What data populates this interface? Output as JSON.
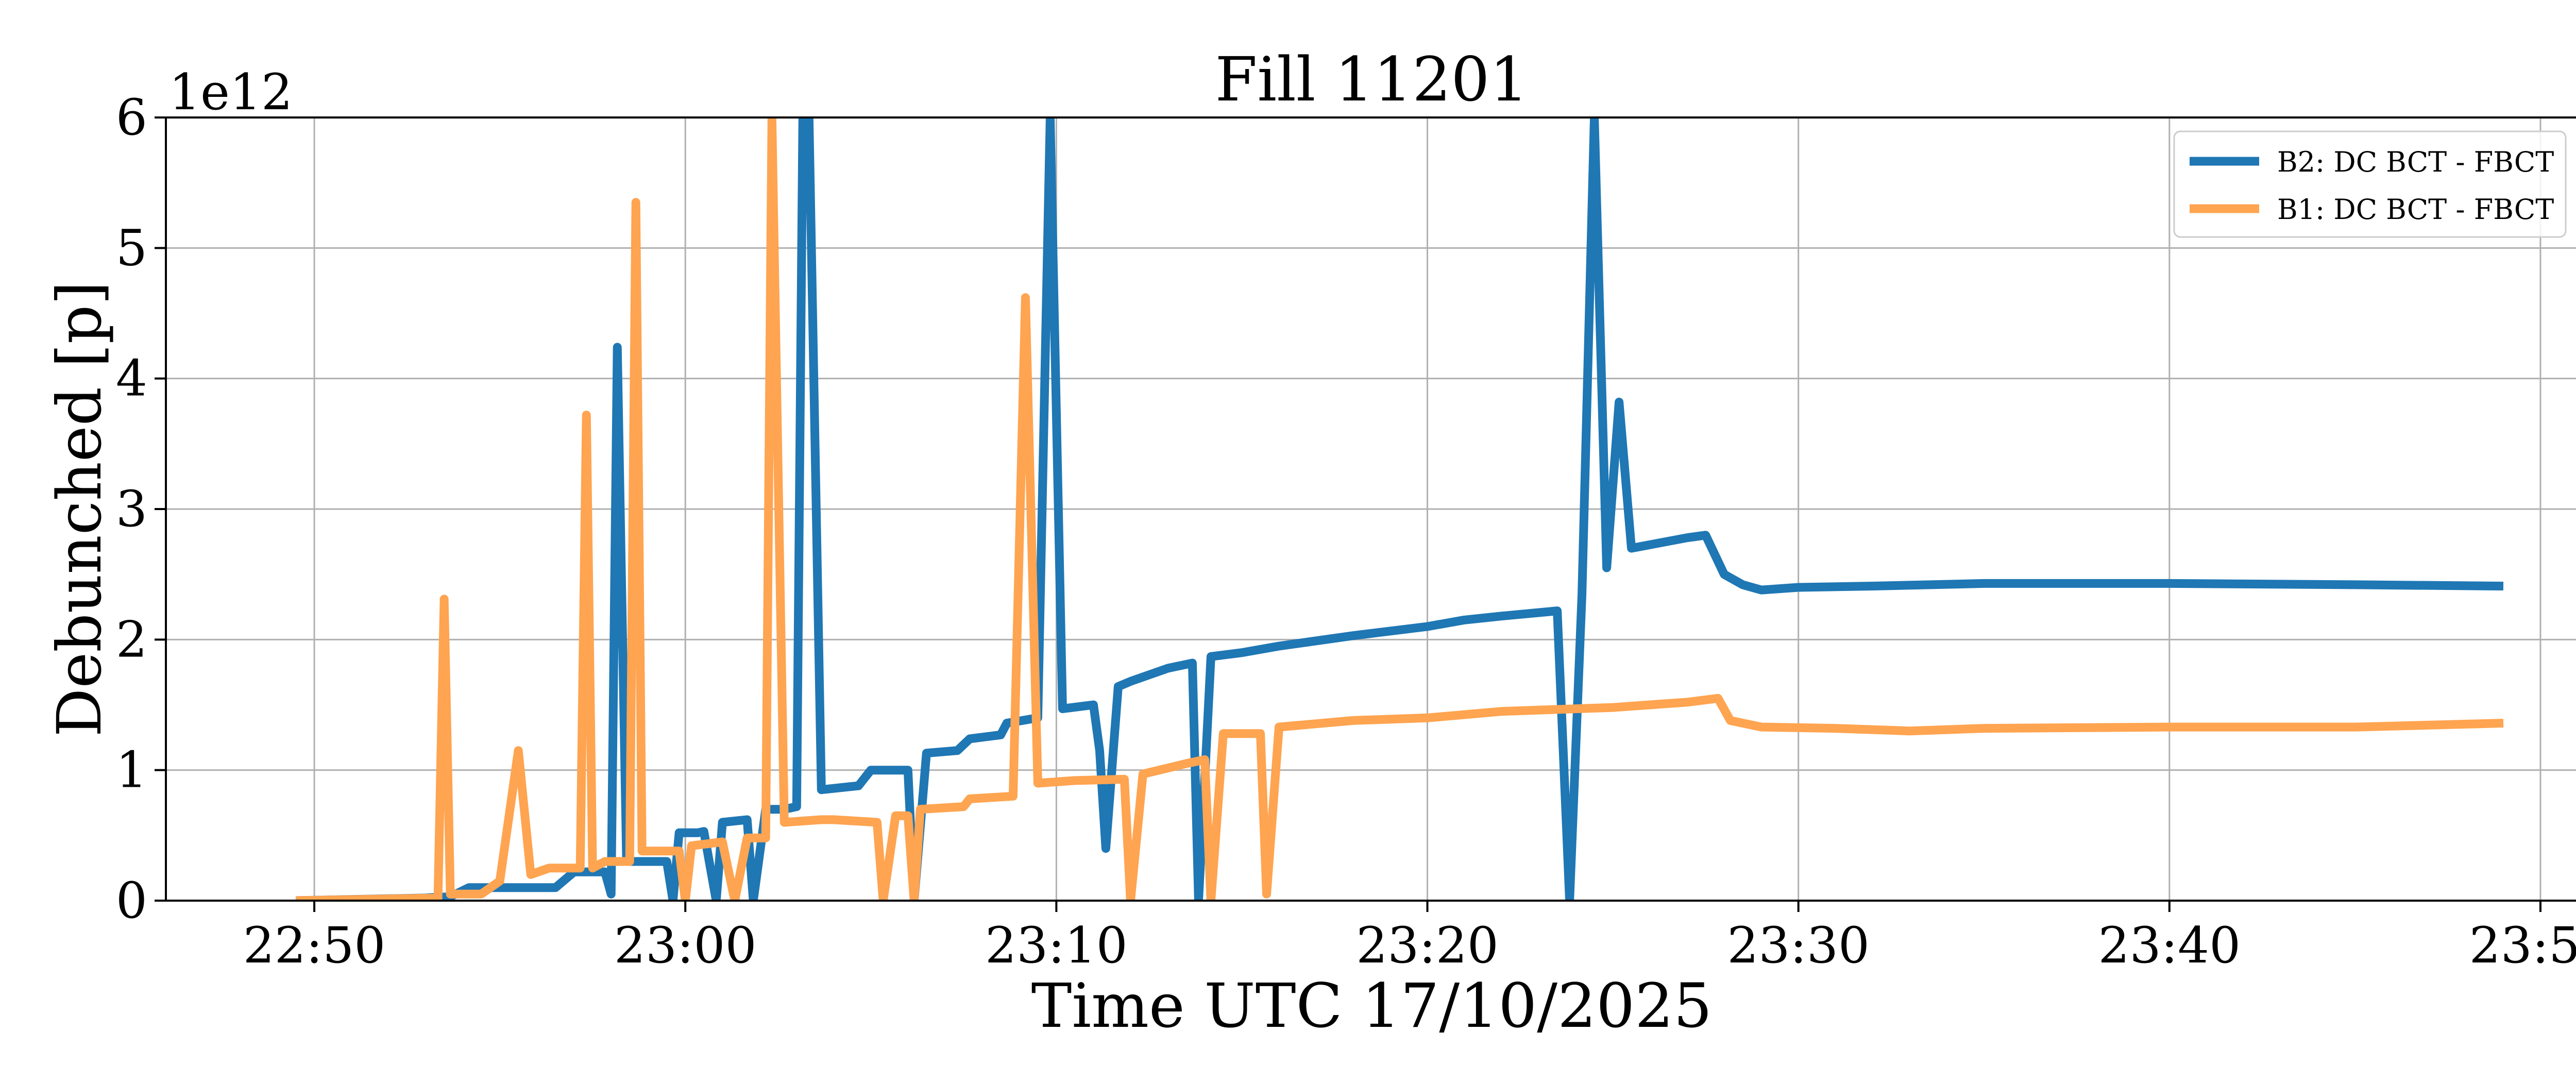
{
  "chart_data": {
    "type": "line",
    "title": "Fill 11201",
    "xlabel": "Time UTC 17/10/2025",
    "ylabel": "Debunched [p]",
    "y_offset_label": "1e12",
    "y_scale_exponent": 12,
    "xlim": [
      "22:46",
      "23:51"
    ],
    "ylim": [
      0,
      6
    ],
    "x_ticks": [
      "22:50",
      "23:00",
      "23:10",
      "23:20",
      "23:30",
      "23:40",
      "23:50"
    ],
    "y_ticks": [
      "0",
      "1",
      "2",
      "3",
      "4",
      "5",
      "6"
    ],
    "grid": true,
    "legend_position": "top-right",
    "series": [
      {
        "name": "B2: DC BCT - FBCT",
        "color": "#1f77b4",
        "points": [
          [
            "22:49:30",
            0.0
          ],
          [
            "22:53:00",
            0.02
          ],
          [
            "22:53:40",
            0.03
          ],
          [
            "22:54:10",
            0.1
          ],
          [
            "22:56:30",
            0.1
          ],
          [
            "22:57:00",
            0.22
          ],
          [
            "22:57:50",
            0.22
          ],
          [
            "22:58:00",
            0.05
          ],
          [
            "22:58:10",
            4.24
          ],
          [
            "22:58:25",
            0.3
          ],
          [
            "22:59:30",
            0.3
          ],
          [
            "22:59:40",
            0.0
          ],
          [
            "22:59:50",
            0.52
          ],
          [
            "23:00:20",
            0.52
          ],
          [
            "23:00:30",
            0.53
          ],
          [
            "23:00:50",
            0.0
          ],
          [
            "23:01:00",
            0.6
          ],
          [
            "23:01:40",
            0.62
          ],
          [
            "23:01:50",
            0.0
          ],
          [
            "23:02:10",
            0.7
          ],
          [
            "23:02:40",
            0.7
          ],
          [
            "23:03:00",
            0.72
          ],
          [
            "23:03:10",
            6.0
          ],
          [
            "23:03:20",
            6.0
          ],
          [
            "23:03:40",
            0.85
          ],
          [
            "23:04:40",
            0.88
          ],
          [
            "23:05:00",
            1.0
          ],
          [
            "23:06:00",
            1.0
          ],
          [
            "23:06:10",
            0.0
          ],
          [
            "23:06:30",
            1.13
          ],
          [
            "23:07:20",
            1.15
          ],
          [
            "23:07:40",
            1.24
          ],
          [
            "23:08:30",
            1.27
          ],
          [
            "23:08:40",
            1.36
          ],
          [
            "23:09:30",
            1.4
          ],
          [
            "23:09:50",
            6.0
          ],
          [
            "23:10:10",
            1.47
          ],
          [
            "23:11:00",
            1.5
          ],
          [
            "23:11:10",
            1.15
          ],
          [
            "23:11:20",
            0.4
          ],
          [
            "23:11:40",
            1.64
          ],
          [
            "23:12:00",
            1.68
          ],
          [
            "23:13:00",
            1.78
          ],
          [
            "23:13:40",
            1.82
          ],
          [
            "23:13:50",
            0.0
          ],
          [
            "23:14:10",
            1.87
          ],
          [
            "23:15:00",
            1.9
          ],
          [
            "23:16:00",
            1.95
          ],
          [
            "23:18:00",
            2.03
          ],
          [
            "23:20:00",
            2.1
          ],
          [
            "23:21:00",
            2.15
          ],
          [
            "23:22:00",
            2.18
          ],
          [
            "23:23:30",
            2.22
          ],
          [
            "23:23:50",
            0.0
          ],
          [
            "23:24:10",
            2.35
          ],
          [
            "23:24:30",
            6.0
          ],
          [
            "23:24:50",
            2.55
          ],
          [
            "23:25:10",
            3.82
          ],
          [
            "23:25:30",
            2.7
          ],
          [
            "23:27:00",
            2.78
          ],
          [
            "23:27:30",
            2.8
          ],
          [
            "23:28:00",
            2.5
          ],
          [
            "23:28:30",
            2.42
          ],
          [
            "23:29:00",
            2.38
          ],
          [
            "23:30:00",
            2.4
          ],
          [
            "23:32:00",
            2.41
          ],
          [
            "23:35:00",
            2.43
          ],
          [
            "23:40:00",
            2.43
          ],
          [
            "23:45:00",
            2.42
          ],
          [
            "23:49:00",
            2.41
          ]
        ]
      },
      {
        "name": "B1: DC BCT - FBCT",
        "color": "#ffa450",
        "points": [
          [
            "22:49:30",
            0.0
          ],
          [
            "22:53:20",
            0.02
          ],
          [
            "22:53:30",
            2.31
          ],
          [
            "22:53:40",
            0.05
          ],
          [
            "22:54:30",
            0.05
          ],
          [
            "22:55:00",
            0.15
          ],
          [
            "22:55:30",
            1.15
          ],
          [
            "22:55:50",
            0.2
          ],
          [
            "22:56:20",
            0.25
          ],
          [
            "22:57:10",
            0.25
          ],
          [
            "22:57:20",
            3.72
          ],
          [
            "22:57:30",
            0.25
          ],
          [
            "22:57:50",
            0.3
          ],
          [
            "22:58:30",
            0.3
          ],
          [
            "22:58:40",
            5.35
          ],
          [
            "22:58:50",
            0.38
          ],
          [
            "22:59:50",
            0.38
          ],
          [
            "23:00:00",
            0.0
          ],
          [
            "23:00:10",
            0.42
          ],
          [
            "23:01:00",
            0.45
          ],
          [
            "23:01:20",
            0.0
          ],
          [
            "23:01:40",
            0.48
          ],
          [
            "23:02:10",
            0.48
          ],
          [
            "23:02:20",
            6.0
          ],
          [
            "23:02:40",
            0.6
          ],
          [
            "23:03:40",
            0.62
          ],
          [
            "23:04:00",
            0.62
          ],
          [
            "23:05:10",
            0.6
          ],
          [
            "23:05:20",
            0.0
          ],
          [
            "23:05:40",
            0.65
          ],
          [
            "23:06:00",
            0.65
          ],
          [
            "23:06:10",
            0.0
          ],
          [
            "23:06:20",
            0.7
          ],
          [
            "23:07:30",
            0.72
          ],
          [
            "23:07:40",
            0.78
          ],
          [
            "23:08:50",
            0.8
          ],
          [
            "23:09:10",
            4.62
          ],
          [
            "23:09:30",
            0.9
          ],
          [
            "23:10:30",
            0.92
          ],
          [
            "23:11:50",
            0.93
          ],
          [
            "23:12:00",
            0.0
          ],
          [
            "23:12:20",
            0.97
          ],
          [
            "23:13:30",
            1.05
          ],
          [
            "23:14:00",
            1.08
          ],
          [
            "23:14:10",
            0.0
          ],
          [
            "23:14:30",
            1.28
          ],
          [
            "23:15:30",
            1.28
          ],
          [
            "23:15:40",
            0.05
          ],
          [
            "23:16:00",
            1.33
          ],
          [
            "23:18:00",
            1.38
          ],
          [
            "23:20:00",
            1.4
          ],
          [
            "23:22:00",
            1.45
          ],
          [
            "23:25:00",
            1.48
          ],
          [
            "23:27:00",
            1.52
          ],
          [
            "23:27:50",
            1.55
          ],
          [
            "23:28:10",
            1.38
          ],
          [
            "23:29:00",
            1.33
          ],
          [
            "23:31:00",
            1.32
          ],
          [
            "23:33:00",
            1.3
          ],
          [
            "23:35:00",
            1.32
          ],
          [
            "23:40:00",
            1.33
          ],
          [
            "23:45:00",
            1.33
          ],
          [
            "23:49:00",
            1.36
          ]
        ]
      }
    ]
  }
}
